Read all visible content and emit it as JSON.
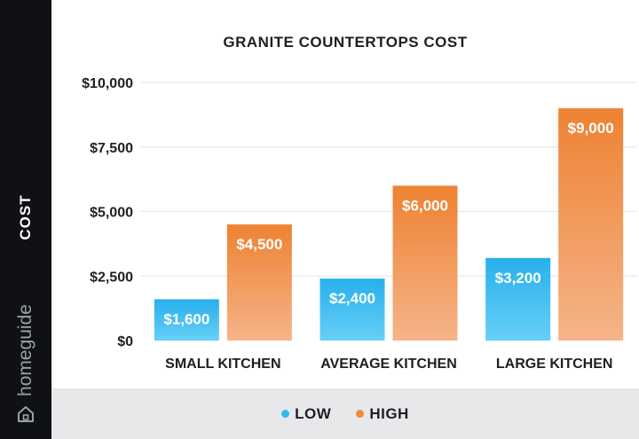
{
  "chart_data": {
    "type": "bar",
    "title": "GRANITE COUNTERTOPS COST",
    "ylabel": "COST",
    "xlabel": "",
    "categories": [
      "SMALL KITCHEN",
      "AVERAGE KITCHEN",
      "LARGE KITCHEN"
    ],
    "series": [
      {
        "name": "LOW",
        "values": [
          1600,
          2400,
          3200
        ],
        "labels": [
          "$1,600",
          "$2,400",
          "$3,200"
        ],
        "color": "#35b8ee"
      },
      {
        "name": "HIGH",
        "values": [
          4500,
          6000,
          9000
        ],
        "labels": [
          "$4,500",
          "$6,000",
          "$9,000"
        ],
        "color": "#f08a3e"
      }
    ],
    "ylim": [
      0,
      10000
    ],
    "yticks": [
      0,
      2500,
      5000,
      7500,
      10000
    ],
    "ytick_labels": [
      "$0",
      "$2,500",
      "$5,000",
      "$7,500",
      "$10,000"
    ],
    "grid": true,
    "legend": "bottom"
  },
  "brand": {
    "name": "homeguide",
    "icon": "house-icon"
  }
}
